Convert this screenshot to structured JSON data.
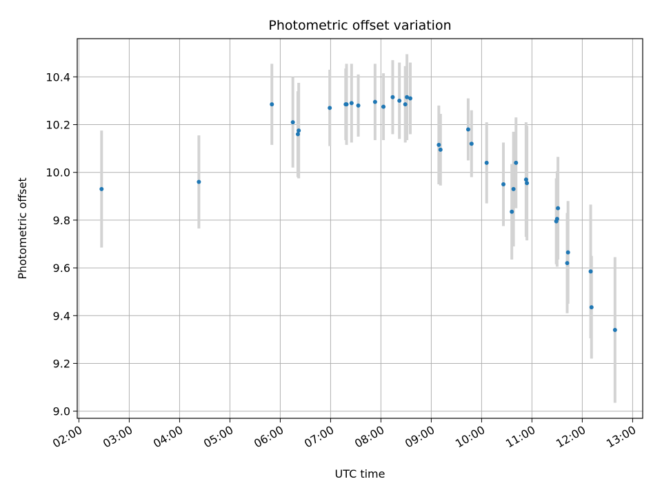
{
  "chart_data": {
    "type": "scatter",
    "title": "Photometric offset variation",
    "xlabel": "UTC time",
    "ylabel": "Photometric offset",
    "x_axis_type": "time",
    "xlim": [
      "01:58",
      "13:12"
    ],
    "ylim": [
      8.97,
      10.56
    ],
    "x_ticks": [
      "02:00",
      "03:00",
      "04:00",
      "05:00",
      "06:00",
      "07:00",
      "08:00",
      "09:00",
      "10:00",
      "11:00",
      "12:00",
      "13:00"
    ],
    "y_ticks": [
      "9.0",
      "9.2",
      "9.4",
      "9.6",
      "9.8",
      "10.0",
      "10.2",
      "10.4"
    ],
    "grid": true,
    "point_color": "#1f77b4",
    "errorbar_color": "#d3d3d3",
    "series": [
      {
        "points": [
          {
            "x": "02:27",
            "y": 9.93,
            "err": 0.245
          },
          {
            "x": "04:23",
            "y": 9.96,
            "err": 0.195
          },
          {
            "x": "05:50",
            "y": 10.285,
            "err": 0.17
          },
          {
            "x": "06:15",
            "y": 10.21,
            "err": 0.19
          },
          {
            "x": "06:21",
            "y": 10.16,
            "err": 0.18
          },
          {
            "x": "06:22",
            "y": 10.175,
            "err": 0.2
          },
          {
            "x": "06:59",
            "y": 10.27,
            "err": 0.16
          },
          {
            "x": "07:18",
            "y": 10.285,
            "err": 0.15
          },
          {
            "x": "07:19",
            "y": 10.285,
            "err": 0.17
          },
          {
            "x": "07:25",
            "y": 10.29,
            "err": 0.165
          },
          {
            "x": "07:33",
            "y": 10.28,
            "err": 0.13
          },
          {
            "x": "07:53",
            "y": 10.295,
            "err": 0.16
          },
          {
            "x": "08:03",
            "y": 10.275,
            "err": 0.14
          },
          {
            "x": "08:14",
            "y": 10.315,
            "err": 0.155
          },
          {
            "x": "08:22",
            "y": 10.3,
            "err": 0.16
          },
          {
            "x": "08:29",
            "y": 10.285,
            "err": 0.16
          },
          {
            "x": "08:31",
            "y": 10.315,
            "err": 0.18
          },
          {
            "x": "08:35",
            "y": 10.31,
            "err": 0.15
          },
          {
            "x": "09:09",
            "y": 10.115,
            "err": 0.165
          },
          {
            "x": "09:11",
            "y": 10.095,
            "err": 0.15
          },
          {
            "x": "09:44",
            "y": 10.18,
            "err": 0.13
          },
          {
            "x": "09:48",
            "y": 10.12,
            "err": 0.14
          },
          {
            "x": "10:06",
            "y": 10.04,
            "err": 0.17
          },
          {
            "x": "10:26",
            "y": 9.95,
            "err": 0.175
          },
          {
            "x": "10:36",
            "y": 9.835,
            "err": 0.2
          },
          {
            "x": "10:38",
            "y": 9.93,
            "err": 0.24
          },
          {
            "x": "10:41",
            "y": 10.04,
            "err": 0.19
          },
          {
            "x": "10:53",
            "y": 9.97,
            "err": 0.24
          },
          {
            "x": "10:54",
            "y": 9.955,
            "err": 0.24
          },
          {
            "x": "11:29",
            "y": 9.795,
            "err": 0.18
          },
          {
            "x": "11:30",
            "y": 9.805,
            "err": 0.2
          },
          {
            "x": "11:31",
            "y": 9.85,
            "err": 0.215
          },
          {
            "x": "11:42",
            "y": 9.62,
            "err": 0.21
          },
          {
            "x": "11:43",
            "y": 9.665,
            "err": 0.215
          },
          {
            "x": "12:10",
            "y": 9.585,
            "err": 0.28
          },
          {
            "x": "12:11",
            "y": 9.435,
            "err": 0.215
          },
          {
            "x": "12:39",
            "y": 9.34,
            "err": 0.305
          }
        ]
      }
    ]
  }
}
